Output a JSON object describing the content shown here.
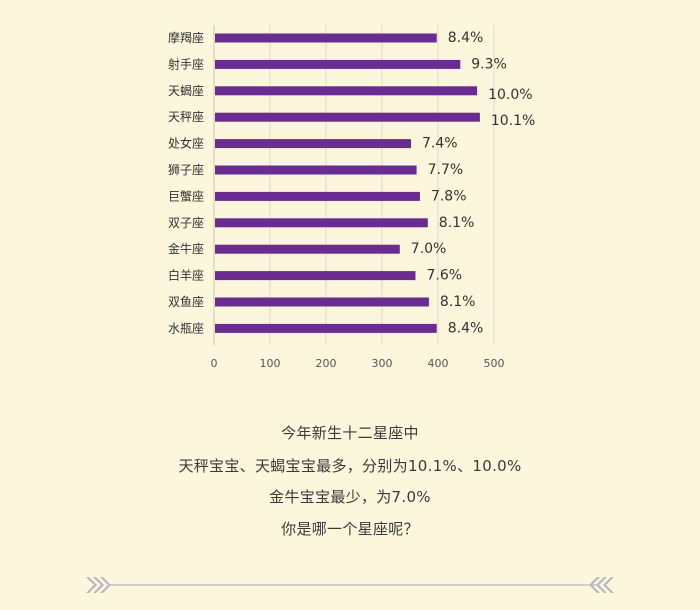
{
  "chart_data": {
    "type": "bar",
    "orientation": "horizontal",
    "categories": [
      "摩羯座",
      "射手座",
      "天蝎座",
      "天秤座",
      "处女座",
      "狮子座",
      "巨蟹座",
      "双子座",
      "金牛座",
      "白羊座",
      "双鱼座",
      "水瓶座"
    ],
    "values": [
      396,
      438,
      468,
      473,
      350,
      360,
      366,
      380,
      330,
      358,
      382,
      396
    ],
    "labels": [
      "8.4%",
      "9.3%",
      "10.0%",
      "10.1%",
      "7.4%",
      "7.7%",
      "7.8%",
      "8.1%",
      "7.0%",
      "7.6%",
      "8.1%",
      "8.4%"
    ],
    "xlim": [
      0,
      500
    ],
    "xticks": [
      "0",
      "100",
      "200",
      "300",
      "400",
      "500"
    ],
    "grid": true,
    "bar_color": "#6a2c91"
  },
  "caption": {
    "line1": "今年新生十二星座中",
    "line2": "天秤宝宝、天蝎宝宝最多，分别为10.1%、10.0%",
    "line3": "金牛宝宝最少，为7.0%",
    "line4": "你是哪一个星座呢？"
  },
  "colors": {
    "background": "#fbf6dc",
    "divider": "#b9b6c4"
  }
}
